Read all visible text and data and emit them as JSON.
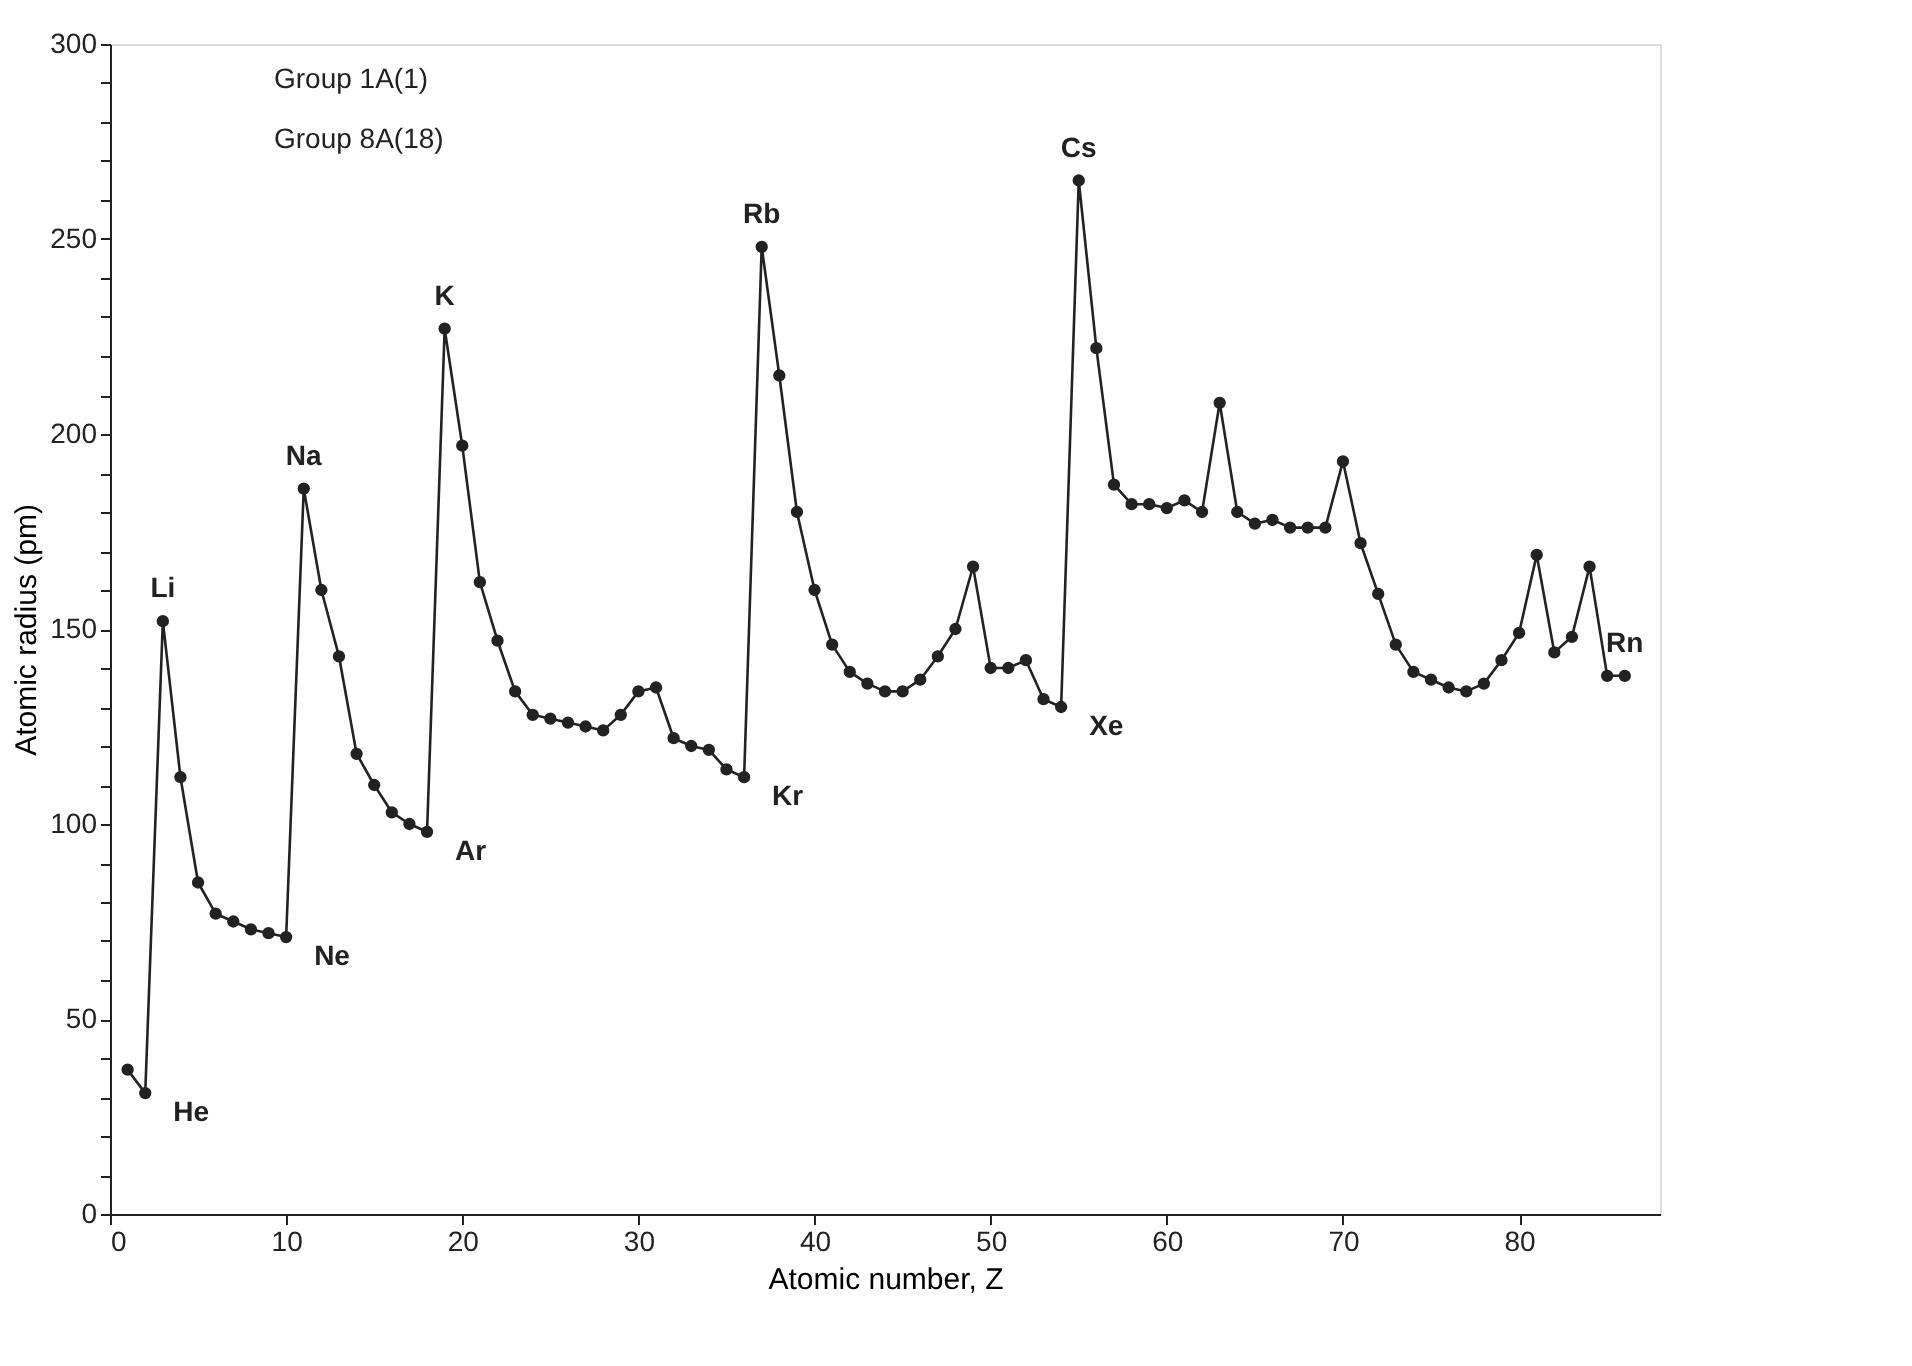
{
  "chart_data": {
    "type": "line",
    "xlabel": "Atomic number, Z",
    "ylabel": "Atomic radius (pm)",
    "x": [
      1,
      2,
      3,
      4,
      5,
      6,
      7,
      8,
      9,
      10,
      11,
      12,
      13,
      14,
      15,
      16,
      17,
      18,
      19,
      20,
      21,
      22,
      23,
      24,
      25,
      26,
      27,
      28,
      29,
      30,
      31,
      32,
      33,
      34,
      35,
      36,
      37,
      38,
      39,
      40,
      41,
      42,
      43,
      44,
      45,
      46,
      47,
      48,
      49,
      50,
      51,
      52,
      53,
      54,
      55,
      56,
      57,
      58,
      59,
      60,
      61,
      62,
      63,
      64,
      65,
      66,
      67,
      68,
      69,
      70,
      71,
      72,
      73,
      74,
      75,
      76,
      77,
      78,
      79,
      80,
      81,
      82,
      83,
      84,
      85,
      86
    ],
    "series": [
      {
        "color": "#222222",
        "marker": "circle",
        "line_style": "solid",
        "values": [
          37,
          31,
          152,
          112,
          85,
          77,
          75,
          73,
          72,
          71,
          186,
          160,
          143,
          118,
          110,
          103,
          100,
          98,
          227,
          197,
          162,
          147,
          134,
          128,
          127,
          126,
          125,
          124,
          128,
          134,
          135,
          122,
          120,
          119,
          114,
          112,
          248,
          215,
          180,
          160,
          146,
          139,
          136,
          134,
          134,
          137,
          143,
          150,
          166,
          140,
          140,
          142,
          132,
          130,
          265,
          222,
          187,
          182,
          182,
          181,
          183,
          180,
          208,
          180,
          177,
          178,
          176,
          176,
          176,
          193,
          172,
          159,
          146,
          139,
          137,
          135,
          134,
          136,
          142,
          149,
          169,
          144,
          148,
          166,
          138,
          138
        ]
      }
    ],
    "xlim": [
      0,
      88
    ],
    "xticks": [
      0,
      10,
      20,
      30,
      40,
      50,
      60,
      70,
      80
    ],
    "ylim": [
      0,
      300
    ],
    "yticks": [
      0,
      {
        "value": 10,
        "label": null
      },
      {
        "value": 20,
        "label": null
      },
      {
        "value": 30,
        "label": null
      },
      {
        "value": 40,
        "label": null
      },
      50,
      {
        "value": 60,
        "label": null
      },
      {
        "value": 70,
        "label": null
      },
      {
        "value": 80,
        "label": null
      },
      {
        "value": 90,
        "label": null
      },
      100,
      {
        "value": 110,
        "label": null
      },
      {
        "value": 120,
        "label": null
      },
      {
        "value": 130,
        "label": null
      },
      {
        "value": 140,
        "label": null
      },
      150,
      {
        "value": 160,
        "label": null
      },
      {
        "value": 170,
        "label": null
      },
      {
        "value": 180,
        "label": null
      },
      {
        "value": 190,
        "label": null
      },
      200,
      {
        "value": 210,
        "label": null
      },
      {
        "value": 220,
        "label": null
      },
      {
        "value": 230,
        "label": null
      },
      {
        "value": 240,
        "label": null
      },
      250,
      {
        "value": 260,
        "label": null
      },
      {
        "value": 270,
        "label": null
      },
      {
        "value": 280,
        "label": null
      },
      {
        "value": 290,
        "label": null
      },
      300
    ],
    "grid": false,
    "annotations": [
      "Group 1A(1)",
      "Group 8A(18)",
      {
        "text": "He",
        "x": 2,
        "y": 31
      },
      {
        "text": "Li",
        "x": 3,
        "y": 152
      },
      {
        "text": "Ne",
        "x": 10,
        "y": 71
      },
      {
        "text": "Na",
        "x": 11,
        "y": 186
      },
      {
        "text": "Ar",
        "x": 18,
        "y": 98
      },
      {
        "text": "K",
        "x": 19,
        "y": 227
      },
      {
        "text": "Kr",
        "x": 36,
        "y": 112
      },
      {
        "text": "Rb",
        "x": 37,
        "y": 248
      },
      {
        "text": "Xe",
        "x": 54,
        "y": 130
      },
      {
        "text": "Cs",
        "x": 55,
        "y": 265
      },
      {
        "text": "Rn",
        "x": 86,
        "y": 138
      }
    ]
  }
}
